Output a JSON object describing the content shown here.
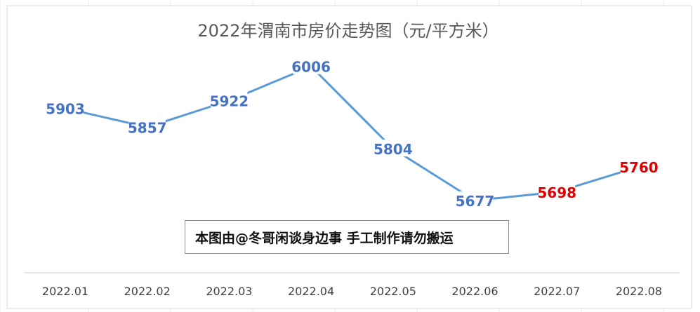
{
  "chart_data": {
    "type": "line",
    "title": "2022年渭南市房价走势图（元/平方米）",
    "categories": [
      "2022.01",
      "2022.02",
      "2022.03",
      "2022.04",
      "2022.05",
      "2022.06",
      "2022.07",
      "2022.08"
    ],
    "series": [
      {
        "values": [
          5903,
          5857,
          5922,
          6006,
          5804,
          5677,
          5698,
          5760
        ]
      }
    ],
    "ylim": [
      5500,
      6100
    ],
    "grid": false,
    "legend": "none",
    "colors": {
      "line": "#5b9bd5",
      "label_default": "#4472c4",
      "label_highlight": "#e00000",
      "title": "#595959",
      "axis": "#d9d9d9",
      "tick": "#404040"
    },
    "highlight_indices": [
      6,
      7
    ]
  },
  "watermark": "本图由@冬哥闲谈身边事 手工制作请勿搬运"
}
